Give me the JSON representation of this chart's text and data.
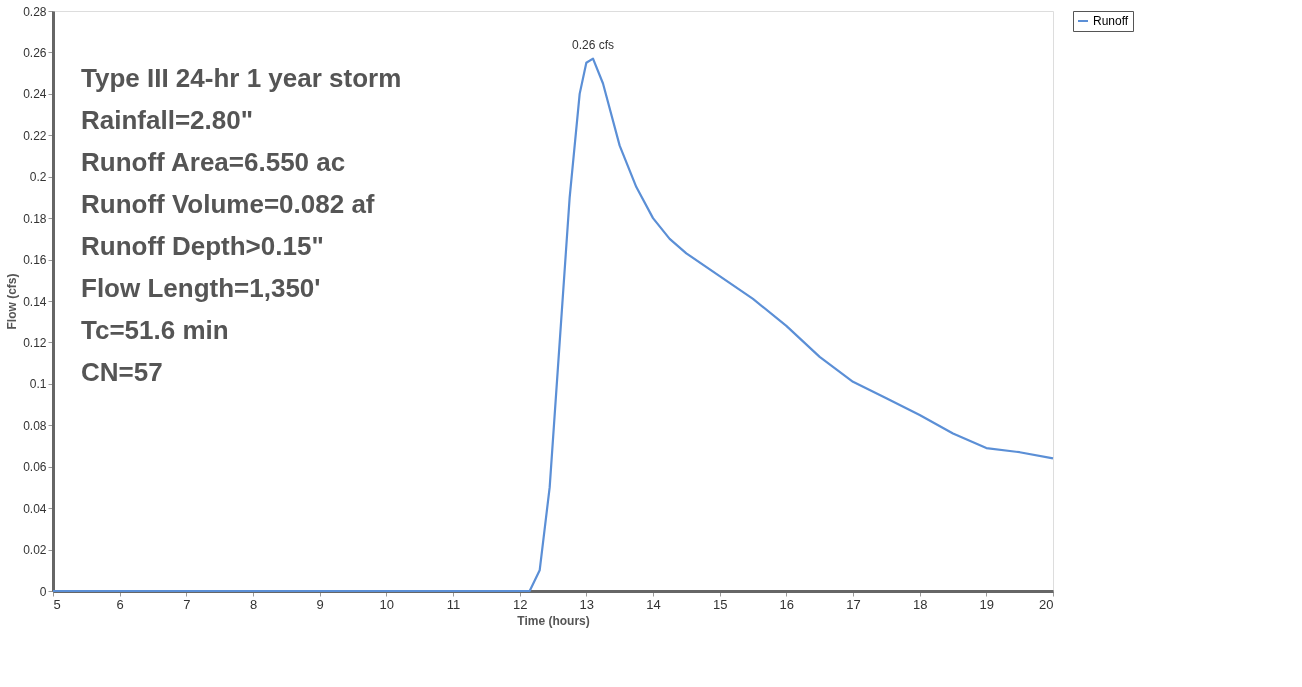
{
  "chart_data": {
    "type": "line",
    "xlabel": "Time (hours)",
    "ylabel": "Flow (cfs)",
    "x": [
      5,
      6,
      7,
      8,
      9,
      10,
      11,
      12,
      12.15,
      12.3,
      12.45,
      12.6,
      12.75,
      12.9,
      13.0,
      13.1,
      13.25,
      13.5,
      13.75,
      14.0,
      14.25,
      14.5,
      15,
      15.5,
      16,
      16.5,
      17,
      17.5,
      18,
      18.5,
      19,
      19.5,
      20
    ],
    "series": [
      {
        "name": "Runoff",
        "color": "#5b8fd6",
        "values": [
          0,
          0,
          0,
          0,
          0,
          0,
          0,
          0,
          0,
          0.01,
          0.05,
          0.12,
          0.19,
          0.24,
          0.255,
          0.257,
          0.245,
          0.215,
          0.195,
          0.18,
          0.17,
          0.163,
          0.152,
          0.141,
          0.128,
          0.113,
          0.101,
          0.093,
          0.085,
          0.076,
          0.069,
          0.067,
          0.064
        ]
      }
    ],
    "xlim": [
      5,
      20
    ],
    "xticks": [
      5,
      6,
      7,
      8,
      9,
      10,
      11,
      12,
      13,
      14,
      15,
      16,
      17,
      18,
      19,
      20
    ],
    "ylim": [
      0,
      0.28
    ],
    "yticks": [
      0,
      0.02,
      0.04,
      0.06,
      0.08,
      0.1,
      0.12,
      0.14,
      0.16,
      0.18,
      0.2,
      0.22,
      0.24,
      0.26,
      0.28
    ],
    "grid": false,
    "legend": "top right",
    "marker": "none",
    "line_style": "solid",
    "annotations": [
      {
        "text": "0.26 cfs",
        "x": 13.1,
        "y": 0.257
      },
      "Type III 24-hr 1 year storm",
      "Rainfall=2.80\"",
      "Runoff Area=6.550 ac",
      "Runoff Volume=0.082 af",
      "Runoff Depth>0.15\"",
      "Flow Length=1,350'",
      "Tc=51.6 min",
      "CN=57"
    ]
  }
}
